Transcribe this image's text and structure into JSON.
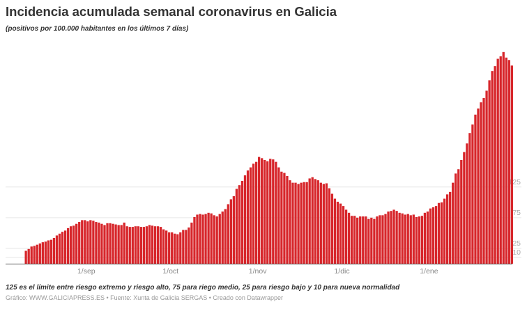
{
  "header": {
    "title": "Incidencia acumulada semanal coronavirus en Galicia",
    "subtitle": "(positivos por 100.000 habitantes en los últimos 7 días)"
  },
  "footer": {
    "note": "125 es el límite entre riesgo extremo y riesgo alto, 75 para riego medio, 25 para riesgo bajo y 10 para nueva normalidad",
    "credit": "Gráfico: WWW.GALICIAPRESS.ES • Fuente: Xunta de Galicia SERGAS • Creado con Datawrapper"
  },
  "chart_data": {
    "type": "bar",
    "title": "Incidencia acumulada semanal coronavirus en Galicia",
    "xlabel": "",
    "ylabel": "",
    "ylim": [
      0,
      355
    ],
    "grid": true,
    "bar_color": "#d7262b",
    "y_ticks": [
      {
        "value": 125,
        "label": "125"
      },
      {
        "value": 75,
        "label": "75"
      },
      {
        "value": 25,
        "label": "25"
      },
      {
        "value": 10,
        "label": "10"
      }
    ],
    "x_ticks": [
      {
        "date": "2020-09-01",
        "label": "1/sep"
      },
      {
        "date": "2020-10-01",
        "label": "1/oct"
      },
      {
        "date": "2020-11-01",
        "label": "1/nov"
      },
      {
        "date": "2020-12-01",
        "label": "1/dic"
      },
      {
        "date": "2021-01-01",
        "label": "1/ene"
      }
    ],
    "x": [
      "2020-08-10",
      "2020-08-11",
      "2020-08-12",
      "2020-08-13",
      "2020-08-14",
      "2020-08-15",
      "2020-08-16",
      "2020-08-17",
      "2020-08-18",
      "2020-08-19",
      "2020-08-20",
      "2020-08-21",
      "2020-08-22",
      "2020-08-23",
      "2020-08-24",
      "2020-08-25",
      "2020-08-26",
      "2020-08-27",
      "2020-08-28",
      "2020-08-29",
      "2020-08-30",
      "2020-08-31",
      "2020-09-01",
      "2020-09-02",
      "2020-09-03",
      "2020-09-04",
      "2020-09-05",
      "2020-09-06",
      "2020-09-07",
      "2020-09-08",
      "2020-09-09",
      "2020-09-10",
      "2020-09-11",
      "2020-09-12",
      "2020-09-13",
      "2020-09-14",
      "2020-09-15",
      "2020-09-16",
      "2020-09-17",
      "2020-09-18",
      "2020-09-19",
      "2020-09-20",
      "2020-09-21",
      "2020-09-22",
      "2020-09-23",
      "2020-09-24",
      "2020-09-25",
      "2020-09-26",
      "2020-09-27",
      "2020-09-28",
      "2020-09-29",
      "2020-09-30",
      "2020-10-01",
      "2020-10-02",
      "2020-10-03",
      "2020-10-04",
      "2020-10-05",
      "2020-10-06",
      "2020-10-07",
      "2020-10-08",
      "2020-10-09",
      "2020-10-10",
      "2020-10-11",
      "2020-10-12",
      "2020-10-13",
      "2020-10-14",
      "2020-10-15",
      "2020-10-16",
      "2020-10-17",
      "2020-10-18",
      "2020-10-19",
      "2020-10-20",
      "2020-10-21",
      "2020-10-22",
      "2020-10-23",
      "2020-10-24",
      "2020-10-25",
      "2020-10-26",
      "2020-10-27",
      "2020-10-28",
      "2020-10-29",
      "2020-10-30",
      "2020-10-31",
      "2020-11-01",
      "2020-11-02",
      "2020-11-03",
      "2020-11-04",
      "2020-11-05",
      "2020-11-06",
      "2020-11-07",
      "2020-11-08",
      "2020-11-09",
      "2020-11-10",
      "2020-11-11",
      "2020-11-12",
      "2020-11-13",
      "2020-11-14",
      "2020-11-15",
      "2020-11-16",
      "2020-11-17",
      "2020-11-18",
      "2020-11-19",
      "2020-11-20",
      "2020-11-21",
      "2020-11-22",
      "2020-11-23",
      "2020-11-24",
      "2020-11-25",
      "2020-11-26",
      "2020-11-27",
      "2020-11-28",
      "2020-11-29",
      "2020-11-30",
      "2020-12-01",
      "2020-12-02",
      "2020-12-03",
      "2020-12-04",
      "2020-12-05",
      "2020-12-06",
      "2020-12-07",
      "2020-12-08",
      "2020-12-09",
      "2020-12-10",
      "2020-12-11",
      "2020-12-12",
      "2020-12-13",
      "2020-12-14",
      "2020-12-15",
      "2020-12-16",
      "2020-12-17",
      "2020-12-18",
      "2020-12-19",
      "2020-12-20",
      "2020-12-21",
      "2020-12-22",
      "2020-12-23",
      "2020-12-24",
      "2020-12-25",
      "2020-12-26",
      "2020-12-27",
      "2020-12-28",
      "2020-12-29",
      "2020-12-30",
      "2020-12-31",
      "2021-01-01",
      "2021-01-02",
      "2021-01-03",
      "2021-01-04",
      "2021-01-05",
      "2021-01-06",
      "2021-01-07",
      "2021-01-08",
      "2021-01-09",
      "2021-01-10",
      "2021-01-11",
      "2021-01-12",
      "2021-01-13",
      "2021-01-14",
      "2021-01-15",
      "2021-01-16",
      "2021-01-17",
      "2021-01-18",
      "2021-01-19",
      "2021-01-20",
      "2021-01-21",
      "2021-01-22",
      "2021-01-23",
      "2021-01-24",
      "2021-01-25",
      "2021-01-26",
      "2021-01-27",
      "2021-01-28",
      "2021-01-29",
      "2021-01-30"
    ],
    "values": [
      21,
      24,
      28,
      29,
      31,
      33,
      35,
      36,
      38,
      39,
      42,
      46,
      49,
      52,
      54,
      58,
      61,
      62,
      65,
      68,
      71,
      71,
      69,
      71,
      70,
      68,
      67,
      65,
      63,
      66,
      66,
      65,
      64,
      63,
      63,
      67,
      61,
      60,
      60,
      61,
      61,
      60,
      60,
      61,
      63,
      62,
      61,
      61,
      60,
      56,
      54,
      51,
      51,
      49,
      48,
      51,
      55,
      55,
      59,
      67,
      76,
      80,
      81,
      80,
      81,
      83,
      82,
      79,
      77,
      81,
      85,
      89,
      97,
      105,
      110,
      122,
      128,
      135,
      144,
      152,
      157,
      163,
      166,
      174,
      172,
      169,
      167,
      171,
      170,
      166,
      157,
      150,
      148,
      143,
      136,
      132,
      132,
      130,
      132,
      133,
      133,
      139,
      141,
      138,
      136,
      132,
      130,
      131,
      123,
      114,
      106,
      101,
      98,
      94,
      88,
      83,
      78,
      78,
      75,
      77,
      77,
      77,
      73,
      75,
      73,
      77,
      79,
      79,
      81,
      85,
      86,
      88,
      86,
      83,
      82,
      80,
      81,
      79,
      80,
      76,
      77,
      78,
      83,
      85,
      90,
      92,
      94,
      99,
      100,
      106,
      113,
      117,
      132,
      147,
      154,
      169,
      182,
      196,
      213,
      227,
      243,
      253,
      263,
      270,
      282,
      299,
      314,
      322,
      334,
      338,
      345,
      336,
      332,
      323
    ]
  }
}
